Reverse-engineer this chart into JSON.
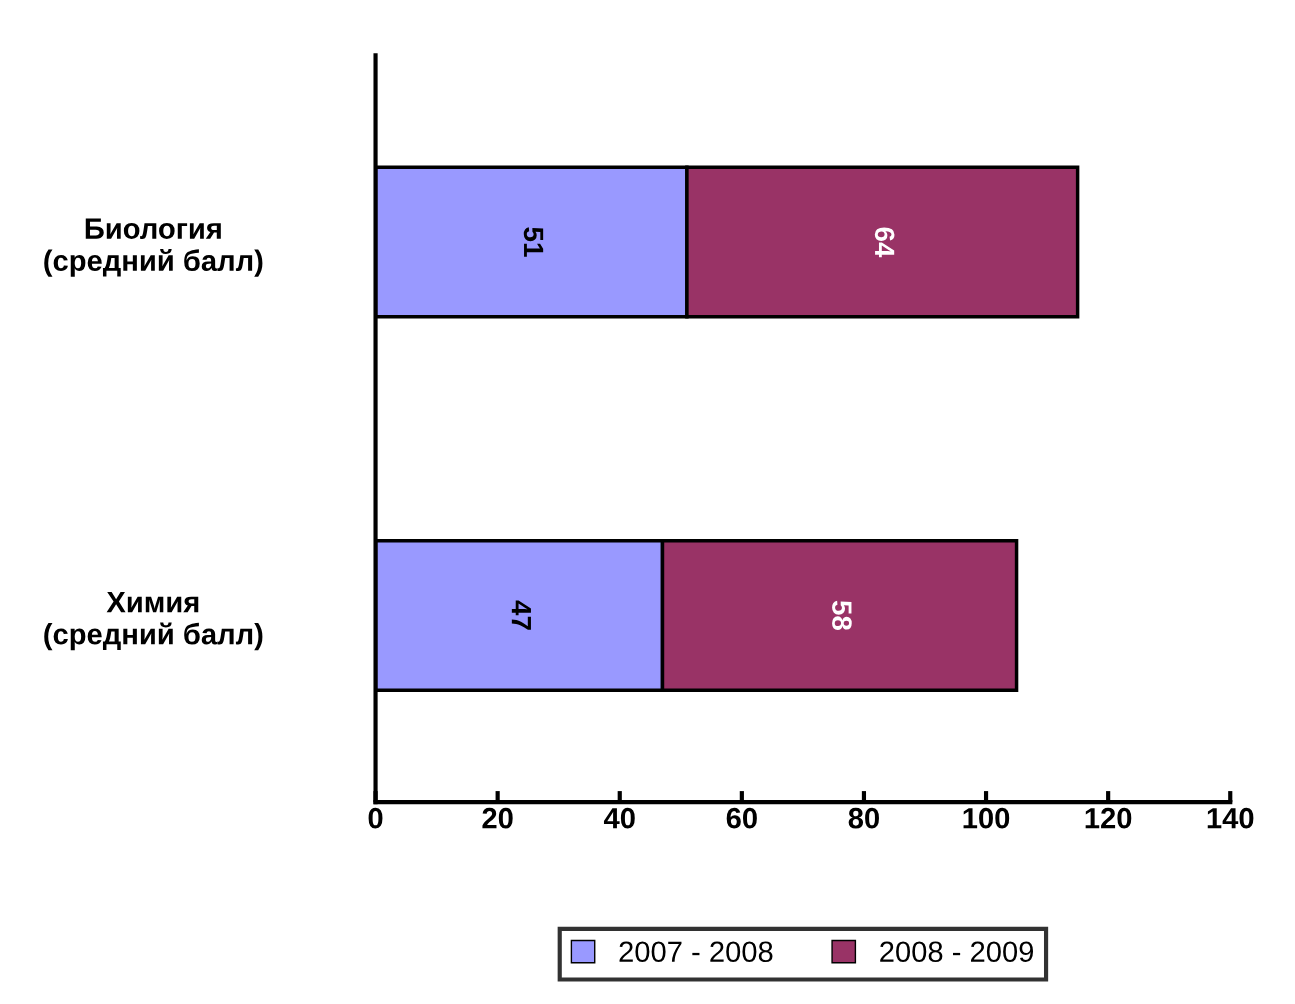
{
  "chart_data": {
    "type": "bar",
    "orientation": "horizontal",
    "stacked": true,
    "categories": [
      "Биология\n(средний балл)",
      "Химия\n(средний балл)"
    ],
    "series": [
      {
        "name": "2007 - 2008",
        "color": "#9999ff",
        "values": [
          51,
          47
        ]
      },
      {
        "name": "2008 - 2009",
        "color": "#993366",
        "values": [
          64,
          58
        ]
      }
    ],
    "xlim": [
      0,
      140
    ],
    "xticks": [
      0,
      20,
      40,
      60,
      80,
      100,
      120,
      140
    ],
    "data_labels": true,
    "legend": "bottom",
    "grid": false
  }
}
